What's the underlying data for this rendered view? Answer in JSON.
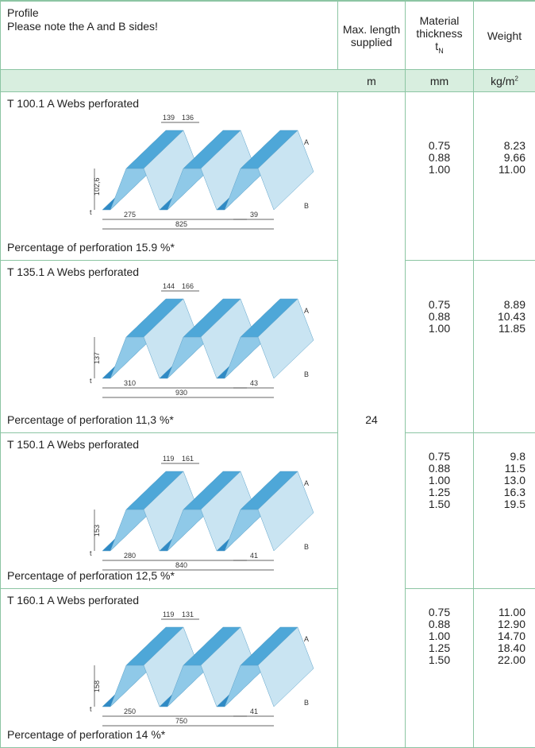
{
  "header": {
    "profile": "Profile",
    "note": "Please note the A and B sides!",
    "max_length": "Max. length supplied",
    "thickness": "Material thickness",
    "thickness_symbol": "t",
    "thickness_subscript": "N",
    "weight": "Weight"
  },
  "units": {
    "max_length": "m",
    "thickness": "mm",
    "weight": "kg/m",
    "weight_superscript": "2"
  },
  "max_length_value": "24",
  "rows": [
    {
      "title": "T 100.1 A Webs perforated",
      "perforation": "Percentage of perforation 15.9 %*",
      "thickness": [
        "0.75",
        "0.88",
        "1.00"
      ],
      "weight": [
        "8.23",
        "9.66",
        "11.00"
      ],
      "dims": {
        "top_left": "139",
        "top_right": "136",
        "height": "102,6",
        "half": "275",
        "width": "825",
        "bottom": "39",
        "side_a": "A",
        "side_b": "B",
        "t": "t"
      }
    },
    {
      "title": "T 135.1 A Webs perforated",
      "perforation": "Percentage of perforation 11,3 %*",
      "thickness": [
        "0.75",
        "0.88",
        "1.00"
      ],
      "weight": [
        "8.89",
        "10.43",
        "11.85"
      ],
      "dims": {
        "top_left": "144",
        "top_right": "166",
        "height": "137",
        "half": "310",
        "width": "930",
        "bottom": "43",
        "side_a": "A",
        "side_b": "B",
        "t": "t"
      }
    },
    {
      "title": "T 150.1 A Webs perforated",
      "perforation": "Percentage of perforation 12,5 %*",
      "thickness": [
        "0.75",
        "0.88",
        "1.00",
        "1.25",
        "1.50"
      ],
      "weight": [
        "9.8",
        "11.5",
        "13.0",
        "16.3",
        "19.5"
      ],
      "dims": {
        "top_left": "119",
        "top_right": "161",
        "height": "153",
        "half": "280",
        "width": "840",
        "bottom": "41",
        "side_a": "A",
        "side_b": "B",
        "t": "t"
      }
    },
    {
      "title": "T 160.1 A Webs perforated",
      "perforation": "Percentage of perforation 14 %*",
      "thickness": [
        "0.75",
        "0.88",
        "1.00",
        "1.25",
        "1.50"
      ],
      "weight": [
        "11.00",
        "12.90",
        "14.70",
        "18.40",
        "22.00"
      ],
      "dims": {
        "top_left": "119",
        "top_right": "131",
        "height": "158",
        "half": "250",
        "width": "750",
        "bottom": "41",
        "side_a": "A",
        "side_b": "B",
        "t": "t"
      }
    }
  ]
}
